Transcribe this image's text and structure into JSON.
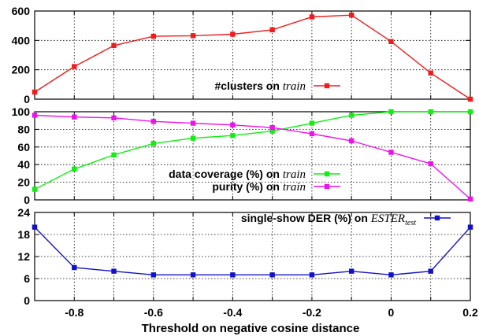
{
  "chart_data": [
    {
      "type": "line",
      "xlim": [
        -0.9,
        0.2
      ],
      "ylim": [
        0,
        600
      ],
      "yticks": [
        "0",
        "200",
        "400",
        "600"
      ],
      "grid": true,
      "legend_position": "bottom-right",
      "series": [
        {
          "name": "#clusters on",
          "name_suffix": "train",
          "color": "#ee1c1c",
          "marker": "square",
          "x": [
            -0.9,
            -0.8,
            -0.7,
            -0.6,
            -0.5,
            -0.4,
            -0.3,
            -0.2,
            -0.1,
            0.0,
            0.1,
            0.2
          ],
          "y": [
            48,
            222,
            365,
            428,
            432,
            442,
            472,
            560,
            572,
            392,
            178,
            0
          ]
        }
      ]
    },
    {
      "type": "line",
      "xlim": [
        -0.9,
        0.2
      ],
      "ylim": [
        0,
        100
      ],
      "yticks": [
        "0",
        "20",
        "40",
        "60",
        "80",
        "100"
      ],
      "grid": true,
      "legend_position": "bottom-right",
      "series": [
        {
          "name": "data coverage (%) on",
          "name_suffix": "train",
          "color": "#11ee11",
          "marker": "square",
          "x": [
            -0.9,
            -0.8,
            -0.7,
            -0.6,
            -0.5,
            -0.4,
            -0.3,
            -0.2,
            -0.1,
            0.0,
            0.1,
            0.2
          ],
          "y": [
            12,
            35,
            51,
            64,
            70,
            73,
            78,
            87,
            96,
            100,
            100,
            100
          ]
        },
        {
          "name": "purity (%) on",
          "name_suffix": "train",
          "color": "#ee11ee",
          "marker": "square",
          "x": [
            -0.9,
            -0.8,
            -0.7,
            -0.6,
            -0.5,
            -0.4,
            -0.3,
            -0.2,
            -0.1,
            0.0,
            0.1,
            0.2
          ],
          "y": [
            96,
            94,
            93,
            89,
            87,
            85,
            82,
            75,
            67,
            54,
            41,
            1
          ]
        }
      ]
    },
    {
      "type": "line",
      "xlim": [
        -0.9,
        0.2
      ],
      "ylim": [
        0,
        24
      ],
      "yticks": [
        "0",
        "6",
        "12",
        "18",
        "24"
      ],
      "grid": true,
      "legend_position": "top-right",
      "xticks": [
        "-0.8",
        "-0.6",
        "-0.4",
        "-0.2",
        "0",
        "0.2"
      ],
      "xtick_values": [
        -0.8,
        -0.6,
        -0.4,
        -0.2,
        0.0,
        0.2
      ],
      "xlabel": "Threshold on negative cosine distance",
      "series": [
        {
          "name": "single-show DER (%) on",
          "name_suffix": "ESTER",
          "name_subscript": "test",
          "color": "#1111cc",
          "marker": "square",
          "x": [
            -0.9,
            -0.8,
            -0.7,
            -0.6,
            -0.5,
            -0.4,
            -0.3,
            -0.2,
            -0.1,
            0.0,
            0.1,
            0.2
          ],
          "y": [
            20,
            9,
            8,
            7,
            7,
            7,
            7,
            7,
            8,
            7,
            8,
            20
          ]
        }
      ]
    }
  ]
}
